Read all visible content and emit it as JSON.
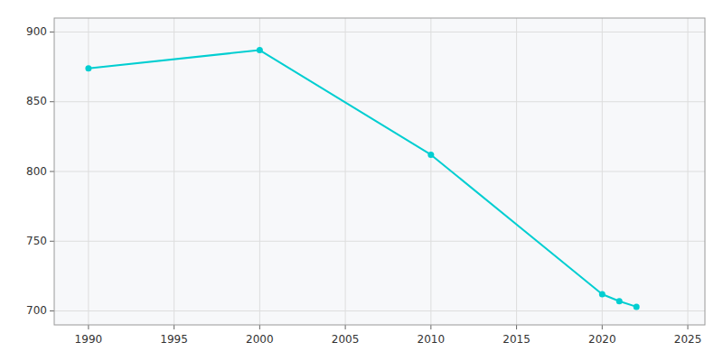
{
  "chart_data": {
    "type": "line",
    "x": [
      1990,
      2000,
      2010,
      2020,
      2021,
      2022
    ],
    "values": [
      874,
      887,
      812,
      712,
      707,
      703
    ],
    "color": "#00CED1",
    "marker": "circle",
    "xlim": [
      1988,
      2026
    ],
    "ylim": [
      690,
      910
    ],
    "xticks": [
      1990,
      1995,
      2000,
      2005,
      2010,
      2015,
      2020,
      2025
    ],
    "yticks": [
      700,
      750,
      800,
      850,
      900
    ],
    "grid": true
  }
}
